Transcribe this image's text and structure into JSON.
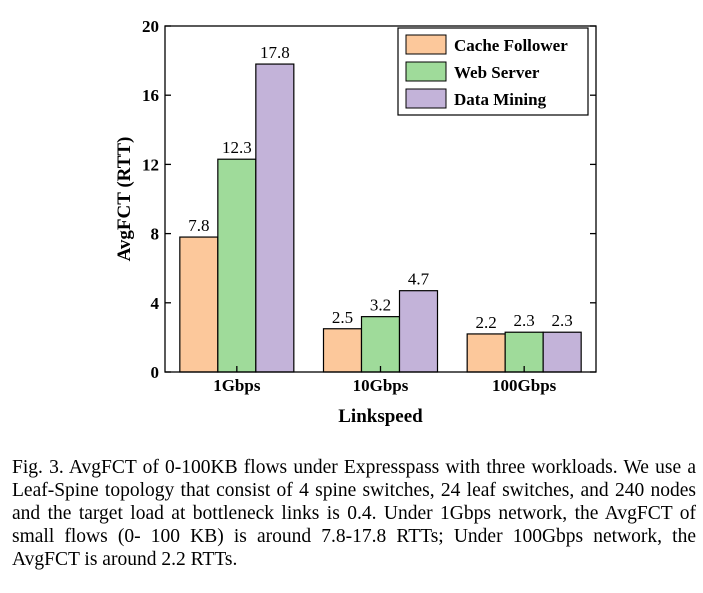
{
  "chart_data": {
    "type": "bar",
    "categories": [
      "1Gbps",
      "10Gbps",
      "100Gbps"
    ],
    "series": [
      {
        "name": "Cache Follower",
        "values": [
          7.8,
          2.5,
          2.2
        ],
        "color": "#fcc89b"
      },
      {
        "name": "Web Server",
        "values": [
          12.3,
          3.2,
          2.3
        ],
        "color": "#9fdb9a"
      },
      {
        "name": "Data Mining",
        "values": [
          17.8,
          4.7,
          2.3
        ],
        "color": "#c3b3d9"
      }
    ],
    "value_labels": [
      [
        "7.8",
        "2.5",
        "2.2"
      ],
      [
        "12.3",
        "3.2",
        "2.3"
      ],
      [
        "17.8",
        "4.7",
        "2.3"
      ]
    ],
    "title": "",
    "xlabel": "Linkspeed",
    "ylabel": "AvgFCT (RTT)",
    "ylim": [
      0,
      20
    ],
    "yticks": [
      0,
      4,
      8,
      12,
      16,
      20
    ],
    "ytick_labels": [
      "0",
      "4",
      "8",
      "12",
      "16",
      "20"
    ],
    "legend_position": "top-right",
    "grid": false
  },
  "caption": "Fig. 3.  AvgFCT of 0-100KB flows under Expresspass with three workloads. We use a Leaf-Spine topology that consist of 4 spine switches, 24 leaf switches, and 240 nodes and the target load at bottleneck links is 0.4. Under 1Gbps network, the AvgFCT of small flows (0- 100 KB) is around 7.8-17.8 RTTs; Under 100Gbps network, the AvgFCT is around 2.2 RTTs."
}
